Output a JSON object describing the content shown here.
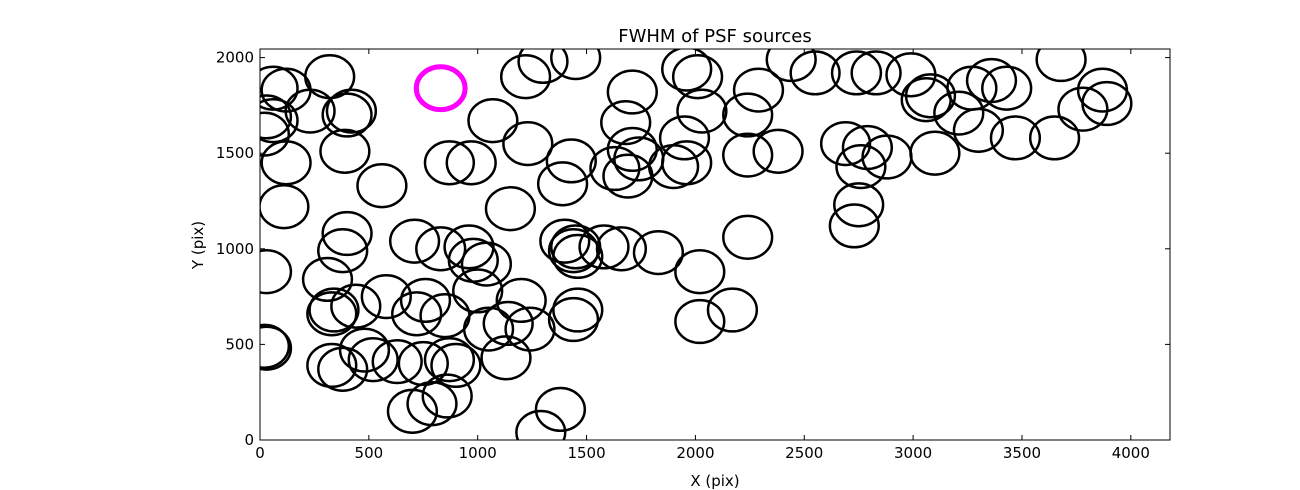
{
  "chart_data": {
    "type": "scatter",
    "title": "FWHM of PSF sources",
    "xlabel": "X (pix)",
    "ylabel": "Y (pix)",
    "xlim": [
      0,
      4180
    ],
    "ylim": [
      0,
      2045
    ],
    "xticks": [
      0,
      500,
      1000,
      1500,
      2000,
      2500,
      3000,
      3500,
      4000
    ],
    "yticks": [
      0,
      500,
      1000,
      1500,
      2000
    ],
    "grid": false,
    "marker": "open circle",
    "marker_radius_data": 112,
    "colors": {
      "sources": "#000000",
      "highlight": "#ff00ff"
    },
    "series": [
      {
        "marker_color": "#000000",
        "points": [
          [
            60,
            1840
          ],
          [
            120,
            1830
          ],
          [
            30,
            1690
          ],
          [
            60,
            1670
          ],
          [
            230,
            1720
          ],
          [
            320,
            1900
          ],
          [
            420,
            1720
          ],
          [
            400,
            1700
          ],
          [
            20,
            1600
          ],
          [
            120,
            1450
          ],
          [
            110,
            1220
          ],
          [
            390,
            1510
          ],
          [
            560,
            1330
          ],
          [
            30,
            880
          ],
          [
            20,
            490
          ],
          [
            30,
            480
          ],
          [
            310,
            840
          ],
          [
            340,
            680
          ],
          [
            330,
            660
          ],
          [
            380,
            990
          ],
          [
            400,
            1080
          ],
          [
            440,
            700
          ],
          [
            380,
            370
          ],
          [
            330,
            390
          ],
          [
            480,
            470
          ],
          [
            520,
            420
          ],
          [
            580,
            750
          ],
          [
            630,
            410
          ],
          [
            710,
            1040
          ],
          [
            760,
            730
          ],
          [
            720,
            660
          ],
          [
            750,
            400
          ],
          [
            850,
            650
          ],
          [
            830,
            1000
          ],
          [
            700,
            150
          ],
          [
            790,
            190
          ],
          [
            860,
            230
          ],
          [
            900,
            390
          ],
          [
            870,
            420
          ],
          [
            960,
            1010
          ],
          [
            1000,
            780
          ],
          [
            1040,
            920
          ],
          [
            980,
            940
          ],
          [
            870,
            1450
          ],
          [
            970,
            1450
          ],
          [
            1050,
            580
          ],
          [
            1130,
            430
          ],
          [
            1140,
            610
          ],
          [
            1200,
            730
          ],
          [
            1240,
            580
          ],
          [
            1150,
            1210
          ],
          [
            1070,
            1670
          ],
          [
            1220,
            1900
          ],
          [
            1230,
            1550
          ],
          [
            1290,
            40
          ],
          [
            1380,
            160
          ],
          [
            1390,
            1340
          ],
          [
            1430,
            1460
          ],
          [
            1400,
            1040
          ],
          [
            1440,
            990
          ],
          [
            1460,
            960
          ],
          [
            1450,
            1010
          ],
          [
            1440,
            630
          ],
          [
            1460,
            680
          ],
          [
            1580,
            1010
          ],
          [
            1630,
            1420
          ],
          [
            1660,
            1000
          ],
          [
            1690,
            1380
          ],
          [
            1710,
            1820
          ],
          [
            1680,
            1660
          ],
          [
            1710,
            1520
          ],
          [
            1740,
            1470
          ],
          [
            1830,
            980
          ],
          [
            1900,
            1430
          ],
          [
            1950,
            1580
          ],
          [
            1960,
            1450
          ],
          [
            1960,
            1940
          ],
          [
            2010,
            1900
          ],
          [
            2030,
            1720
          ],
          [
            2020,
            880
          ],
          [
            2020,
            620
          ],
          [
            2170,
            680
          ],
          [
            2240,
            1060
          ],
          [
            2240,
            1700
          ],
          [
            2240,
            1490
          ],
          [
            2290,
            1830
          ],
          [
            2380,
            1510
          ],
          [
            2440,
            1990
          ],
          [
            2550,
            1920
          ],
          [
            2690,
            1550
          ],
          [
            2740,
            1920
          ],
          [
            2760,
            1430
          ],
          [
            2790,
            1530
          ],
          [
            2750,
            1230
          ],
          [
            2730,
            1120
          ],
          [
            2830,
            1920
          ],
          [
            2880,
            1480
          ],
          [
            2990,
            1910
          ],
          [
            3080,
            1800
          ],
          [
            3060,
            1780
          ],
          [
            3100,
            1500
          ],
          [
            3210,
            1710
          ],
          [
            3270,
            1840
          ],
          [
            3300,
            1620
          ],
          [
            3360,
            1880
          ],
          [
            3430,
            1840
          ],
          [
            3470,
            1580
          ],
          [
            3650,
            1580
          ],
          [
            3680,
            1990
          ],
          [
            3780,
            1730
          ],
          [
            3870,
            1830
          ],
          [
            3890,
            1760
          ],
          [
            1300,
            1980
          ],
          [
            1450,
            2000
          ]
        ]
      },
      {
        "marker_color": "#ff00ff",
        "points": [
          [
            830,
            1840
          ]
        ]
      }
    ]
  }
}
